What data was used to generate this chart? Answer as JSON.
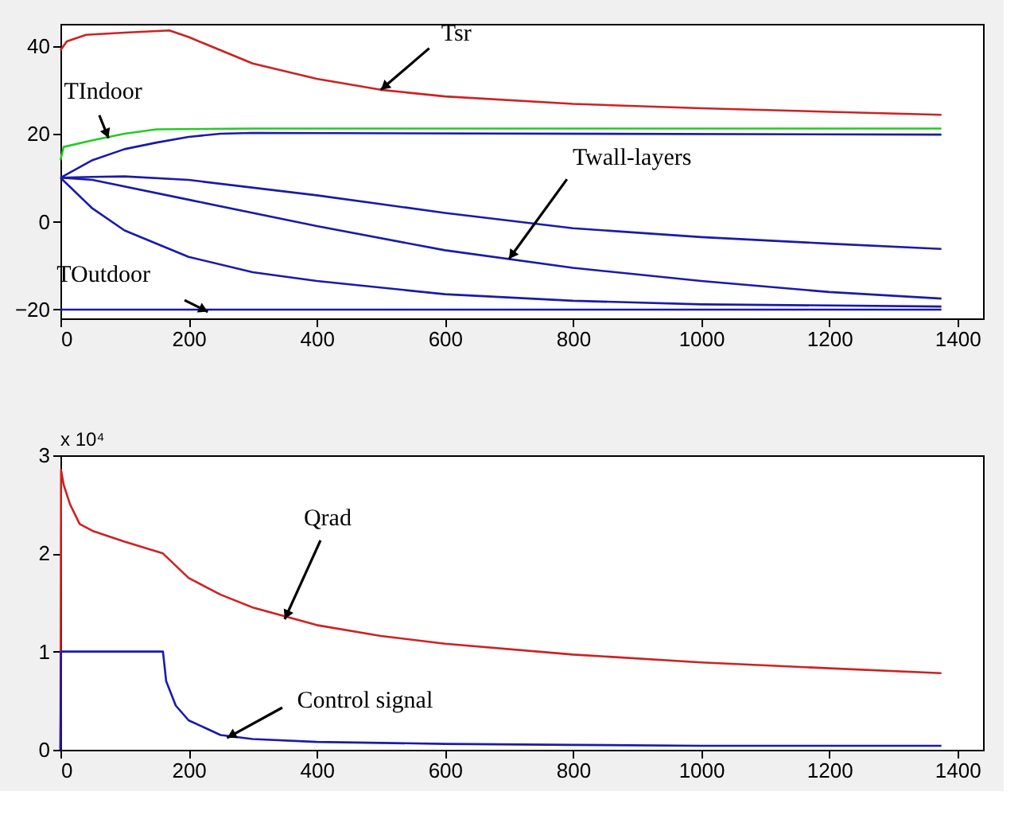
{
  "chart_data": [
    {
      "type": "line",
      "xlim": [
        0,
        1440
      ],
      "ylim": [
        -22,
        45
      ],
      "xticks": [
        0,
        200,
        400,
        600,
        800,
        1000,
        1200,
        1400
      ],
      "yticks": [
        -20,
        0,
        20,
        40
      ],
      "grid": false,
      "line_style": "solid",
      "marker": "none",
      "series": [
        {
          "color": "#cc2222",
          "x": [
            0,
            10,
            40,
            100,
            170,
            200,
            300,
            400,
            500,
            600,
            800,
            1000,
            1200,
            1375
          ],
          "values": [
            39,
            41,
            42.5,
            43,
            43.5,
            42,
            36,
            32.5,
            30,
            28.5,
            26.8,
            25.8,
            25,
            24.3
          ]
        },
        {
          "color": "#22cc22",
          "x": [
            0,
            5,
            50,
            100,
            150,
            300,
            1375
          ],
          "values": [
            14,
            17,
            18.5,
            20,
            21,
            21.2,
            21.2
          ]
        },
        {
          "color": "#1a1aaa",
          "x": [
            0,
            50,
            100,
            150,
            200,
            250,
            300,
            1375
          ],
          "values": [
            10,
            14,
            16.5,
            18,
            19.3,
            20,
            20.2,
            19.8
          ]
        },
        {
          "color": "#1a1aaa",
          "x": [
            0,
            50,
            100,
            200,
            400,
            600,
            800,
            1000,
            1200,
            1375
          ],
          "values": [
            10,
            10.2,
            10.3,
            9.5,
            6,
            2,
            -1.5,
            -3.5,
            -5,
            -6.2
          ]
        },
        {
          "color": "#1a1aaa",
          "x": [
            0,
            50,
            200,
            400,
            600,
            800,
            1000,
            1200,
            1375
          ],
          "values": [
            10,
            9.5,
            5,
            -1,
            -6.5,
            -10.5,
            -13.5,
            -16,
            -17.5
          ]
        },
        {
          "color": "#1a1aaa",
          "x": [
            0,
            50,
            100,
            200,
            300,
            400,
            600,
            800,
            1000,
            1375
          ],
          "values": [
            10,
            3,
            -2,
            -8,
            -11.5,
            -13.5,
            -16.5,
            -18,
            -18.8,
            -19.3
          ]
        },
        {
          "color": "#1a1aaa",
          "x": [
            0,
            1375
          ],
          "values": [
            -20,
            -20
          ]
        }
      ],
      "annotations": [
        {
          "text": "Tsr",
          "x": 500,
          "y": 30
        },
        {
          "text": "TIndoor",
          "x": 75,
          "y": 19
        },
        {
          "text": "Twall-layers",
          "x": 700,
          "y": -8.5
        },
        {
          "text": "TOutdoor",
          "x": 230,
          "y": -20.5
        }
      ]
    },
    {
      "type": "line",
      "xlim": [
        0,
        1440
      ],
      "ylim": [
        0,
        3
      ],
      "xticks": [
        0,
        200,
        400,
        600,
        800,
        1000,
        1200,
        1400
      ],
      "yticks": [
        0,
        1,
        2,
        3
      ],
      "grid": false,
      "line_style": "solid",
      "marker": "none",
      "series": [
        {
          "color": "#cc2222",
          "x": [
            0,
            1,
            5,
            15,
            30,
            50,
            100,
            160,
            200,
            250,
            300,
            400,
            500,
            600,
            800,
            1000,
            1200,
            1375
          ],
          "values": [
            0,
            2.85,
            2.7,
            2.5,
            2.3,
            2.23,
            2.12,
            2.0,
            1.75,
            1.58,
            1.45,
            1.27,
            1.16,
            1.08,
            0.97,
            0.89,
            0.83,
            0.78
          ]
        },
        {
          "color": "#1a1aaa",
          "x": [
            0,
            1,
            160,
            165,
            180,
            200,
            250,
            300,
            400,
            600,
            800,
            1000,
            1375
          ],
          "values": [
            0,
            1.0,
            1.0,
            0.7,
            0.45,
            0.3,
            0.15,
            0.11,
            0.08,
            0.06,
            0.05,
            0.04,
            0.04
          ]
        }
      ],
      "annotations": [
        "x 10⁴",
        {
          "text": "Qrad",
          "x": 350,
          "y": 1.33
        },
        {
          "text": "Control signal",
          "x": 260,
          "y": 0.12
        }
      ]
    }
  ]
}
